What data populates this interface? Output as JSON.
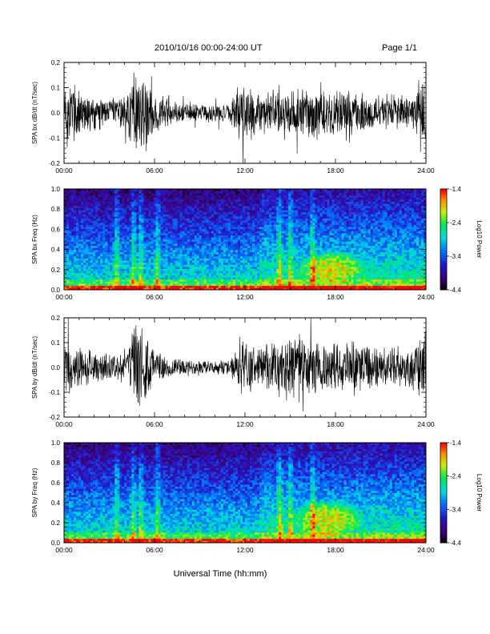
{
  "header": {
    "title": "2010/10/16  00:00-24:00 UT",
    "page": "Page 1/1"
  },
  "chart_data": [
    {
      "type": "line",
      "ylabel": "SPA bx dB/dt (nT/sec)",
      "xlim": [
        0,
        24
      ],
      "ylim": [
        -0.2,
        0.2
      ],
      "yticks": [
        "0.2",
        "0.1",
        "0.0",
        "-0.1",
        "-0.2"
      ],
      "xticks": [
        "00:00",
        "06:00",
        "12:00",
        "18:00",
        "24:00"
      ],
      "amplitude_by_hour": {
        "x": [
          0,
          1,
          2,
          3,
          4,
          4.8,
          5.2,
          5.6,
          6,
          7,
          8,
          9,
          10,
          11,
          11.8,
          12.2,
          13,
          14,
          15,
          16,
          17,
          18,
          19,
          20,
          21,
          22,
          23,
          24
        ],
        "y": [
          0.17,
          0.12,
          0.08,
          0.06,
          0.08,
          0.2,
          0.2,
          0.15,
          0.08,
          0.06,
          0.05,
          0.04,
          0.04,
          0.04,
          0.15,
          0.12,
          0.09,
          0.1,
          0.12,
          0.12,
          0.1,
          0.1,
          0.1,
          0.09,
          0.08,
          0.08,
          0.07,
          0.15
        ]
      }
    },
    {
      "type": "heatmap",
      "ylabel": "SPA bx Freq (Hz)",
      "xlim": [
        0,
        24
      ],
      "ylim": [
        0,
        1
      ],
      "yticks": [
        "1.0",
        "0.8",
        "0.6",
        "0.4",
        "0.2",
        "0.0"
      ],
      "xticks": [
        "00:00",
        "06:00",
        "12:00",
        "18:00",
        "24:00"
      ],
      "colorbar": {
        "label": "Log10 Power",
        "ticks": [
          "-1.4",
          "-2.4",
          "-3.4",
          "-4.4"
        ],
        "range": [
          -4.4,
          -1.4
        ]
      },
      "enhancement_hours": [
        3.5,
        4.6,
        5.1,
        6.2,
        14.3,
        15.0,
        16.5
      ],
      "high_power_region": {
        "x": [
          15.5,
          20
        ],
        "y": [
          0.05,
          0.4
        ]
      }
    },
    {
      "type": "line",
      "ylabel": "SPA by dB/dt (nT/sec)",
      "xlim": [
        0,
        24
      ],
      "ylim": [
        -0.2,
        0.2
      ],
      "yticks": [
        "0.2",
        "0.1",
        "0.0",
        "-0.1",
        "-0.2"
      ],
      "xticks": [
        "00:00",
        "06:00",
        "12:00",
        "18:00",
        "24:00"
      ],
      "amplitude_by_hour": {
        "x": [
          0,
          1,
          2,
          3,
          4,
          4.8,
          5.2,
          5.6,
          6,
          7,
          8,
          9,
          10,
          11,
          11.8,
          12.2,
          13,
          14,
          15,
          16,
          17,
          18,
          19,
          20,
          21,
          22,
          23,
          24
        ],
        "y": [
          0.13,
          0.1,
          0.07,
          0.06,
          0.08,
          0.2,
          0.2,
          0.14,
          0.08,
          0.05,
          0.04,
          0.03,
          0.03,
          0.04,
          0.12,
          0.11,
          0.09,
          0.12,
          0.15,
          0.14,
          0.12,
          0.12,
          0.12,
          0.11,
          0.1,
          0.09,
          0.09,
          0.16
        ]
      }
    },
    {
      "type": "heatmap",
      "ylabel": "SPA by Freq (Hz)",
      "xlim": [
        0,
        24
      ],
      "ylim": [
        0,
        1
      ],
      "yticks": [
        "1.0",
        "0.8",
        "0.6",
        "0.4",
        "0.2",
        "0.0"
      ],
      "xticks": [
        "00:00",
        "06:00",
        "12:00",
        "18:00",
        "24:00"
      ],
      "colorbar": {
        "label": "Log10 Power",
        "ticks": [
          "-1.4",
          "-2.4",
          "-3.4",
          "-4.4"
        ],
        "range": [
          -4.4,
          -1.4
        ]
      },
      "enhancement_hours": [
        3.5,
        4.6,
        5.1,
        6.2,
        14.3,
        15.0,
        16.5
      ],
      "high_power_region": {
        "x": [
          15.0,
          20
        ],
        "y": [
          0.05,
          0.45
        ]
      }
    }
  ],
  "xlabel": "Universal Time (hh:mm)",
  "colors": {
    "background": "#ffffff",
    "trace": "#000000"
  }
}
